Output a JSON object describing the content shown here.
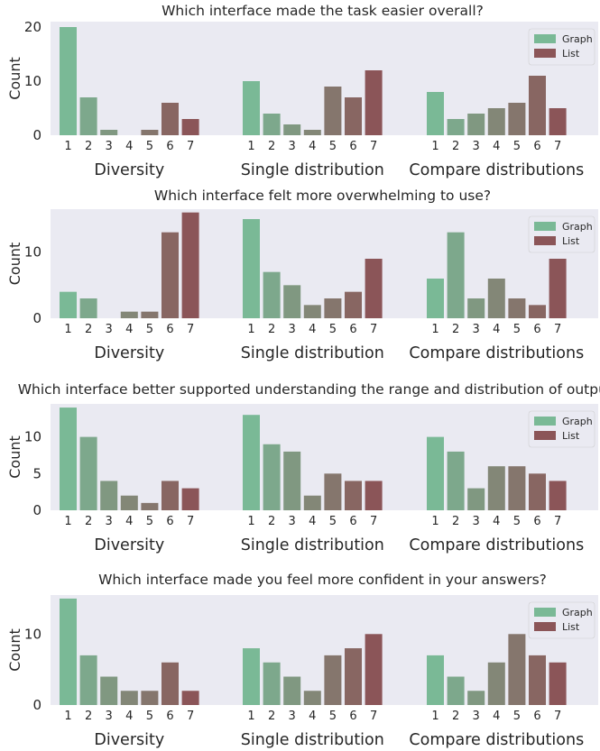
{
  "colors": {
    "graph": "#7ab996",
    "list": "#8b5558",
    "plot_bg": "#eaeaf2",
    "text": "#262626"
  },
  "legend_labels": [
    "Graph",
    "List"
  ],
  "chart_data": [
    {
      "type": "bar",
      "title": "Which interface made the task easier overall?",
      "ylabel": "Count",
      "ylim": [
        0,
        21
      ],
      "yticks": [
        0,
        10,
        20
      ],
      "legend": "top-right",
      "grid": false,
      "categories": [
        "1",
        "2",
        "3",
        "4",
        "5",
        "6",
        "7"
      ],
      "groups": [
        {
          "name": "Diversity",
          "values": [
            20,
            7,
            1,
            0,
            1,
            6,
            3
          ]
        },
        {
          "name": "Single distribution",
          "values": [
            10,
            4,
            2,
            1,
            9,
            7,
            12
          ]
        },
        {
          "name": "Compare distributions",
          "values": [
            8,
            3,
            4,
            5,
            6,
            11,
            5
          ]
        }
      ]
    },
    {
      "type": "bar",
      "title": "Which interface felt more overwhelming to use?",
      "ylabel": "Count",
      "ylim": [
        0,
        16.5
      ],
      "yticks": [
        0,
        10
      ],
      "legend": "top-right",
      "grid": false,
      "categories": [
        "1",
        "2",
        "3",
        "4",
        "5",
        "6",
        "7"
      ],
      "groups": [
        {
          "name": "Diversity",
          "values": [
            4,
            3,
            0,
            1,
            1,
            13,
            16
          ]
        },
        {
          "name": "Single distribution",
          "values": [
            15,
            7,
            5,
            2,
            3,
            4,
            9
          ]
        },
        {
          "name": "Compare distributions",
          "values": [
            6,
            13,
            3,
            6,
            3,
            2,
            9
          ]
        }
      ]
    },
    {
      "type": "bar",
      "title": "Which interface better supported understanding the range and distribution of outputs?",
      "ylabel": "Count",
      "ylim": [
        0,
        14.5
      ],
      "yticks": [
        0,
        5,
        10
      ],
      "legend": "top-right",
      "grid": false,
      "categories": [
        "1",
        "2",
        "3",
        "4",
        "5",
        "6",
        "7"
      ],
      "groups": [
        {
          "name": "Diversity",
          "values": [
            14,
            10,
            4,
            2,
            1,
            4,
            3
          ]
        },
        {
          "name": "Single distribution",
          "values": [
            13,
            9,
            8,
            2,
            5,
            4,
            4
          ]
        },
        {
          "name": "Compare distributions",
          "values": [
            10,
            8,
            3,
            6,
            6,
            5,
            4
          ]
        }
      ]
    },
    {
      "type": "bar",
      "title": "Which interface made you feel more confident in your answers?",
      "ylabel": "Count",
      "ylim": [
        0,
        15.5
      ],
      "yticks": [
        0,
        10
      ],
      "legend": "top-right",
      "grid": false,
      "categories": [
        "1",
        "2",
        "3",
        "4",
        "5",
        "6",
        "7"
      ],
      "groups": [
        {
          "name": "Diversity",
          "values": [
            15,
            7,
            4,
            2,
            2,
            6,
            2
          ]
        },
        {
          "name": "Single distribution",
          "values": [
            8,
            6,
            4,
            2,
            7,
            8,
            10
          ]
        },
        {
          "name": "Compare distributions",
          "values": [
            7,
            4,
            2,
            6,
            10,
            7,
            6
          ]
        }
      ]
    }
  ]
}
